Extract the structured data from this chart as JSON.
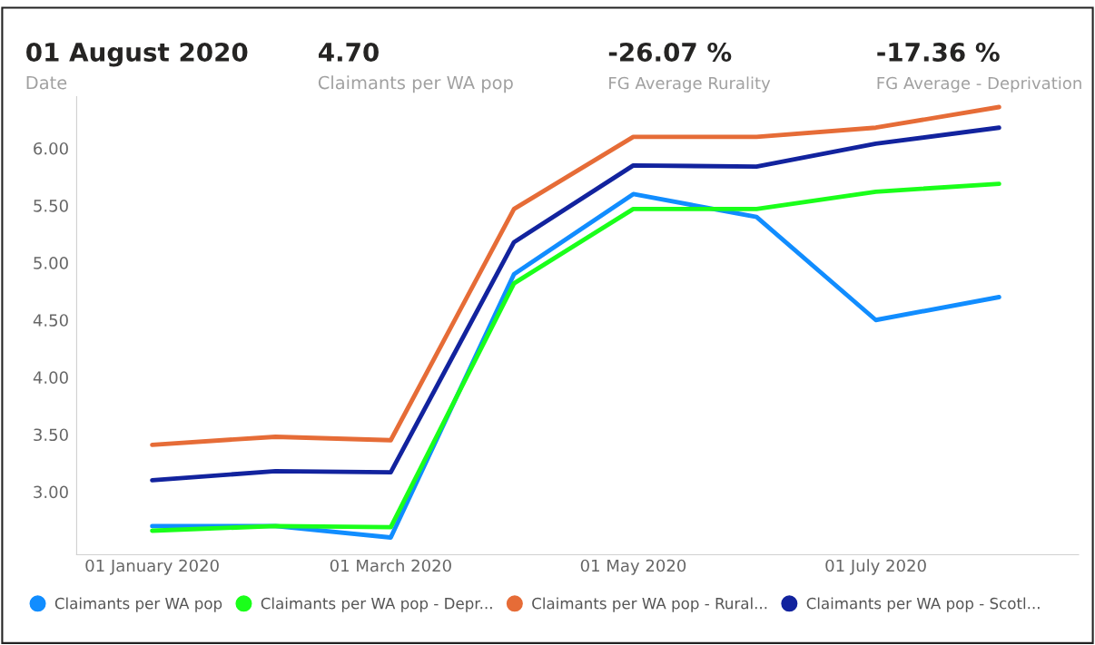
{
  "chart_data": {
    "type": "line",
    "annotations": [
      "01 August 2020",
      "Date",
      "4.70",
      "Claimants per WA pop",
      "-26.07 %",
      "FG Average Rurality",
      "-17.36 %",
      "FG Average - Deprivation"
    ],
    "x": [
      "2020-01-01",
      "2020-02-01",
      "2020-03-01",
      "2020-04-01",
      "2020-05-01",
      "2020-06-01",
      "2020-07-01",
      "2020-08-01"
    ],
    "series": [
      {
        "name": "Claimants per WA pop",
        "color": "#118dff",
        "values": [
          2.7,
          2.7,
          2.6,
          4.9,
          5.6,
          5.4,
          4.5,
          4.7
        ]
      },
      {
        "name": "Claimants per WA pop - Depr...",
        "color": "#1aff1a",
        "values": [
          2.66,
          2.7,
          2.69,
          4.82,
          5.47,
          5.47,
          5.62,
          5.69
        ]
      },
      {
        "name": "Claimants per WA pop - Rural...",
        "color": "#e66c37",
        "values": [
          3.41,
          3.48,
          3.45,
          5.47,
          6.1,
          6.1,
          6.18,
          6.36
        ]
      },
      {
        "name": "Claimants per WA pop - Scotl...",
        "color": "#12239e",
        "values": [
          3.1,
          3.18,
          3.17,
          5.18,
          5.85,
          5.84,
          6.04,
          6.18
        ]
      }
    ],
    "xlim": [
      "2019-12-13",
      "2020-08-21"
    ],
    "xticks": [
      {
        "value": "2020-01-01",
        "label": "01 January 2020"
      },
      {
        "value": "2020-03-01",
        "label": "01 March 2020"
      },
      {
        "value": "2020-05-01",
        "label": "01 May 2020"
      },
      {
        "value": "2020-07-01",
        "label": "01 July 2020"
      }
    ],
    "ylim": [
      2.45,
      6.45
    ],
    "yticks": [
      {
        "value": 3,
        "label": "3.00"
      },
      {
        "value": 3.5,
        "label": "3.50"
      },
      {
        "value": 4,
        "label": "4.00"
      },
      {
        "value": 4.5,
        "label": "4.50"
      },
      {
        "value": 5,
        "label": "5.00"
      },
      {
        "value": 5.5,
        "label": "5.50"
      },
      {
        "value": 6,
        "label": "6.00"
      }
    ],
    "legend": "bottom",
    "grid": false,
    "marker": "none",
    "line_style": "solid"
  }
}
